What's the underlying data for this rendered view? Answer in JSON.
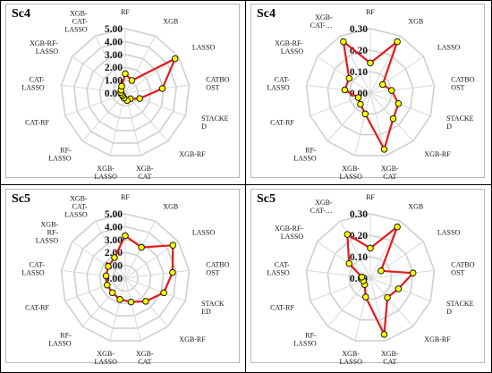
{
  "chart_data": [
    {
      "type": "radar",
      "title": "Sc4",
      "categories": [
        "RF",
        "XGB",
        "LASSO",
        "CATBOOST",
        "STACKED",
        "XGB-RF",
        "XGB-CAT",
        "XGB-LASSO",
        "RF-LASSO",
        "CAT-RF",
        "CAT-LASSO",
        "XGB-RF-LASSO",
        "XGB-CAT-LASSO"
      ],
      "category_labels": [
        [
          "RF"
        ],
        [
          "XGB"
        ],
        [
          "LASSO"
        ],
        [
          "CATBO",
          "OST"
        ],
        [
          "STACKE",
          "D"
        ],
        [
          "XGB-RF"
        ],
        [
          "XGB-",
          "CAT"
        ],
        [
          "XGB-",
          "LASSO"
        ],
        [
          "RF-",
          "LASSO"
        ],
        [
          "CAT-RF"
        ],
        [
          "CAT-",
          "LASSO"
        ],
        [
          "XGB-RF-",
          "LASSO"
        ],
        [
          "XGB-",
          "CAT-",
          "LASSO"
        ]
      ],
      "rlim": [
        0,
        5
      ],
      "ticks": [
        "0.00",
        "1.00",
        "2.00",
        "3.00",
        "4.00",
        "5.00"
      ],
      "values": [
        1.5,
        1.1,
        4.7,
        2.9,
        1.2,
        0.6,
        0.6,
        0.4,
        0.3,
        0.3,
        0.35,
        0.4,
        0.6
      ],
      "line_color": "#e41a1c",
      "marker_color": "#ffff00",
      "grid": true
    },
    {
      "type": "radar",
      "title": "Sc4",
      "categories": [
        "RF",
        "XGB",
        "LASSO",
        "CATBOOST",
        "STACKED",
        "XGB-RF",
        "XGB-CAT",
        "XGB-LASSO",
        "RF-LASSO",
        "CAT-RF",
        "CAT-LASSO",
        "XGB-RF-LASSO",
        "XGB-CAT-LASSO"
      ],
      "category_labels": [
        [
          "RF"
        ],
        [
          "XGB"
        ],
        [
          "LASSO"
        ],
        [
          "CATBO",
          "OST"
        ],
        [
          "STACKE",
          "D"
        ],
        [
          "XGB-RF"
        ],
        [
          "XGB-",
          "CAT"
        ],
        [
          "XGB-",
          "LASSO"
        ],
        [
          "RF-",
          "LASSO"
        ],
        [
          "CAT-RF"
        ],
        [
          "CAT-",
          "LASSO"
        ],
        [
          "XGB-RF-",
          "LASSO"
        ],
        [
          "XGB-",
          "CAT-…"
        ]
      ],
      "rlim": [
        0,
        0.3
      ],
      "ticks": [
        "0.00",
        "0.10",
        "0.20",
        "0.30"
      ],
      "values": [
        0.14,
        0.27,
        0.07,
        0.1,
        0.14,
        0.16,
        0.27,
        0.1,
        0.07,
        0.06,
        0.12,
        0.12,
        0.27
      ],
      "line_color": "#e41a1c",
      "marker_color": "#ffff00",
      "grid": true
    },
    {
      "type": "radar",
      "title": "Sc5",
      "categories": [
        "RF",
        "XGB",
        "LASSO",
        "CATBOOST",
        "STACKED",
        "XGB-RF",
        "XGB-CAT",
        "XGB-LASSO",
        "RF-LASSO",
        "CAT-RF",
        "CAT-LASSO",
        "XGB-RF-LASSO",
        "XGB-CAT-LASSO"
      ],
      "category_labels": [
        [
          "RF"
        ],
        [
          "XGB"
        ],
        [
          "LASSO"
        ],
        [
          "CATBO",
          "OST"
        ],
        [
          "STACK",
          "ED"
        ],
        [
          "XGB-RF"
        ],
        [
          "XGB-",
          "CAT"
        ],
        [
          "XGB-",
          "LASSO"
        ],
        [
          "RF-",
          "LASSO"
        ],
        [
          "CAT-RF"
        ],
        [
          "CAT-",
          "LASSO"
        ],
        [
          "XGB-",
          "RF-",
          "LASSO"
        ],
        [
          "XGB-",
          "CAT-",
          "LASSO"
        ]
      ],
      "rlim": [
        0,
        5
      ],
      "ticks": [
        "0.00",
        "1.00",
        "2.00",
        "3.00",
        "4.00",
        "5.00"
      ],
      "values": [
        3.3,
        2.7,
        4.5,
        3.7,
        3.2,
        2.4,
        1.9,
        1.7,
        1.5,
        1.5,
        1.5,
        1.6,
        1.8
      ],
      "line_color": "#e41a1c",
      "marker_color": "#ffff00",
      "grid": true
    },
    {
      "type": "radar",
      "title": "Sc5",
      "categories": [
        "RF",
        "XGB",
        "LASSO",
        "CATBOOST",
        "STACKED",
        "XGB-RF",
        "XGB-CAT",
        "XGB-LASSO",
        "RF-LASSO",
        "CAT-RF",
        "CAT-LASSO",
        "XGB-RF-LASSO",
        "XGB-CAT-LASSO"
      ],
      "category_labels": [
        [
          "RF"
        ],
        [
          "XGB"
        ],
        [
          "LASSO"
        ],
        [
          "CATBO",
          "OST"
        ],
        [
          "STACKE",
          "D"
        ],
        [
          "XGB-RF"
        ],
        [
          "XGB-",
          "CAT"
        ],
        [
          "XGB-",
          "LASSO"
        ],
        [
          "RF-",
          "LASSO"
        ],
        [
          "CAT-RF"
        ],
        [
          "CAT-",
          "LASSO"
        ],
        [
          "XGB-RF-",
          "LASSO"
        ],
        [
          "XGB-",
          "CAT-…"
        ]
      ],
      "rlim": [
        0,
        0.3
      ],
      "ticks": [
        "0.00",
        "0.10",
        "0.20",
        "0.30"
      ],
      "values": [
        0.14,
        0.27,
        0.06,
        0.2,
        0.14,
        0.12,
        0.27,
        0.09,
        0.04,
        0.035,
        0.04,
        0.12,
        0.23
      ],
      "line_color": "#e41a1c",
      "marker_color": "#ffff00",
      "grid": true
    }
  ]
}
